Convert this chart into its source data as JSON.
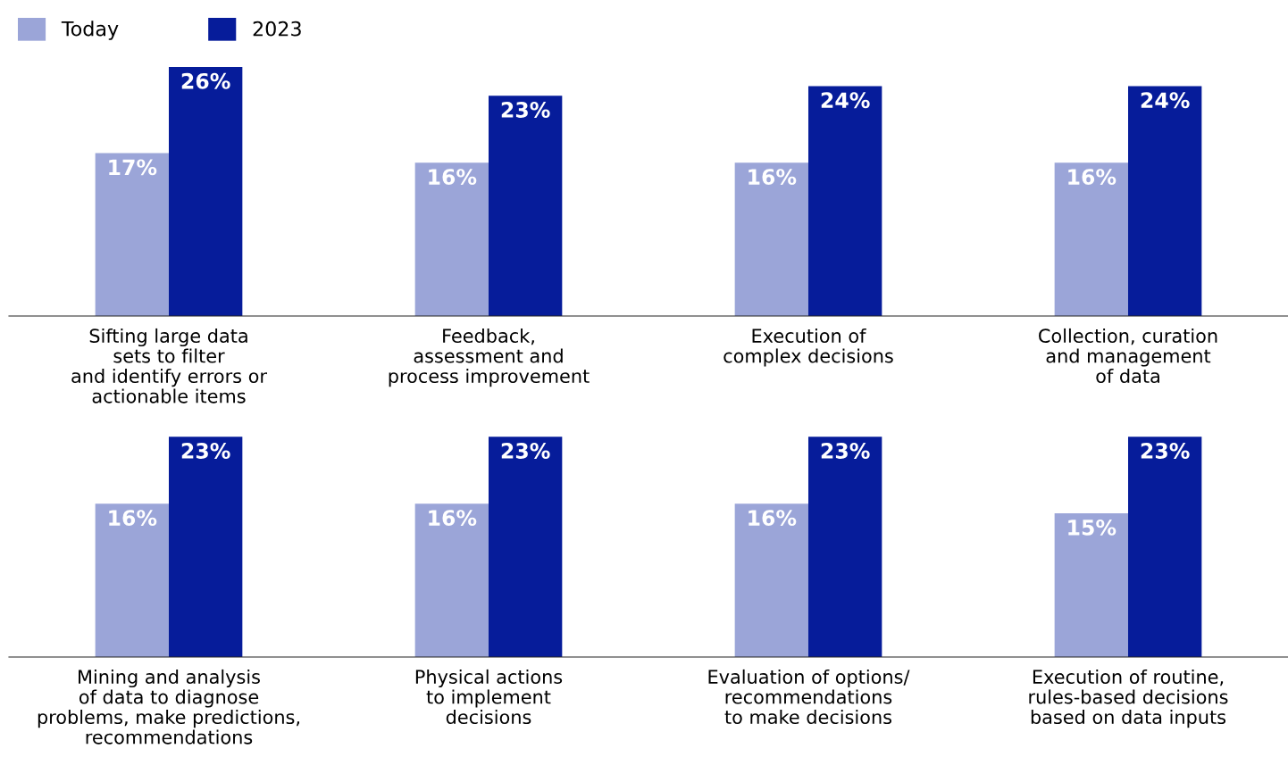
{
  "chart_data": [
    {
      "type": "bar",
      "categories": [
        "Sifting large data\nsets to filter\nand identify errors or\nactionable items",
        "Feedback,\nassessment and\nprocess improvement",
        "Execution of\ncomplex decisions",
        "Collection, curation\nand management\nof data"
      ],
      "series": [
        {
          "name": "Today",
          "color": "#9ba5d8",
          "values": [
            17,
            16,
            16,
            16
          ],
          "value_labels": [
            "17%",
            "16%",
            "16%",
            "16%"
          ]
        },
        {
          "name": "2023",
          "color": "#061c9a",
          "values": [
            26,
            23,
            24,
            24
          ],
          "value_labels": [
            "26%",
            "23%",
            "24%",
            "24%"
          ]
        }
      ],
      "legend": "top left",
      "grid": false
    },
    {
      "type": "bar",
      "categories": [
        "Mining and analysis\nof data to diagnose\nproblems, make predictions,\nrecommendations",
        "Physical actions\nto implement\ndecisions",
        "Evaluation of options/\nrecommendations\nto make decisions",
        "Execution of routine,\nrules-based decisions\nbased on data inputs"
      ],
      "series": [
        {
          "color": "#9ba5d8",
          "values": [
            16,
            16,
            16,
            15
          ],
          "value_labels": [
            "16%",
            "16%",
            "16%",
            "15%"
          ]
        },
        {
          "color": "#061c9a",
          "values": [
            23,
            23,
            23,
            23
          ],
          "value_labels": [
            "23%",
            "23%",
            "23%",
            "23%"
          ]
        }
      ],
      "grid": false
    }
  ]
}
